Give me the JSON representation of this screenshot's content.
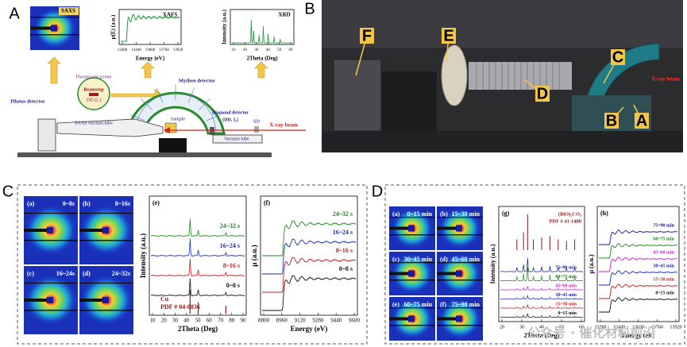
{
  "A": {
    "letter": "A",
    "saxs": "SAXS",
    "xafs": {
      "title": "XAFS",
      "ylabel": "μ(E) (a.u.)",
      "xlabel": "Energy (eV)",
      "xticks": [
        13280,
        13440,
        13600,
        13760,
        13920
      ]
    },
    "xrd": {
      "title": "XRD",
      "ylabel": "Intensity (a.u.)",
      "xlabel": "2Theta (Deg)",
      "xticks": [
        10,
        20,
        30,
        40,
        50,
        60
      ]
    },
    "labels": [
      "Fluorescent screen",
      "Beamstop",
      "DD (I₁)",
      "Mythen detector",
      "Pilatus detector",
      "SAXS vacuum tube",
      "Sample",
      "Diamond detector",
      "(DD, I₀)",
      "Slit",
      "X-ray beam",
      "Vacuum tube"
    ]
  },
  "B": {
    "letter": "B",
    "markers": [
      "F",
      "E",
      "D",
      "C",
      "B",
      "A"
    ],
    "beam": "X-ray beam"
  },
  "C": {
    "letter": "C",
    "saxs": [
      [
        "(a)",
        "0~8s"
      ],
      [
        "(b)",
        "8~16s"
      ],
      [
        "(c)",
        "16~24s"
      ],
      [
        "(d)",
        "24~32s"
      ]
    ],
    "xrd": {
      "tag": "(e)",
      "ylabel": "Intensity (a.u.)",
      "xlabel": "2Theta (Deg)",
      "xticks": [
        10,
        20,
        30,
        40,
        50,
        60,
        70,
        80,
        90
      ],
      "curves": [
        "24~32 s",
        "16~24 s",
        "8~16 s",
        "0~8 s"
      ],
      "ref": [
        "Cu",
        "PDF # 04-0836"
      ]
    },
    "xafs": {
      "tag": "(f)",
      "ylabel": "μ (a.u.)",
      "xlabel": "Energy (eV)",
      "xticks": [
        8800,
        8960,
        9120,
        9280,
        9440,
        9600
      ],
      "curves": [
        "24~32 s",
        "16~24 s",
        "8~16 s",
        "0~8 s"
      ]
    }
  },
  "D": {
    "letter": "D",
    "saxs": [
      [
        "(a)",
        "0~15 min"
      ],
      [
        "(b)",
        "15~30 min"
      ],
      [
        "(c)",
        "30~45 min"
      ],
      [
        "(d)",
        "45~60 min"
      ],
      [
        "(e)",
        "60~75 min"
      ],
      [
        "(f)",
        "75~90 min"
      ]
    ],
    "xrd": {
      "tag": "(g)",
      "ylabel": "Intensity (a.u.)",
      "xlabel": "2Theta (Deg)",
      "xticks": [
        20,
        30,
        40,
        50,
        60
      ],
      "ref": [
        "(BiO)₂CO₃",
        "PDF # 41-1488"
      ],
      "curves": [
        "75~90 min",
        "60~75 min",
        "45~60 min",
        "30~45 min",
        "15~30 min",
        "0~15 min"
      ]
    },
    "xafs": {
      "tag": "(h)",
      "ylabel": "μ (a.u.)",
      "xlabel": "Energy (eV)",
      "xticks": [
        13280,
        13440,
        13600,
        13760,
        13920
      ],
      "curves": [
        "75~90 min",
        "60~75 min",
        "45~60 min",
        "30~45 min",
        "15~30 min",
        "0~15 min"
      ]
    }
  },
  "watermark": "公众号 · 催化材料前沿"
}
